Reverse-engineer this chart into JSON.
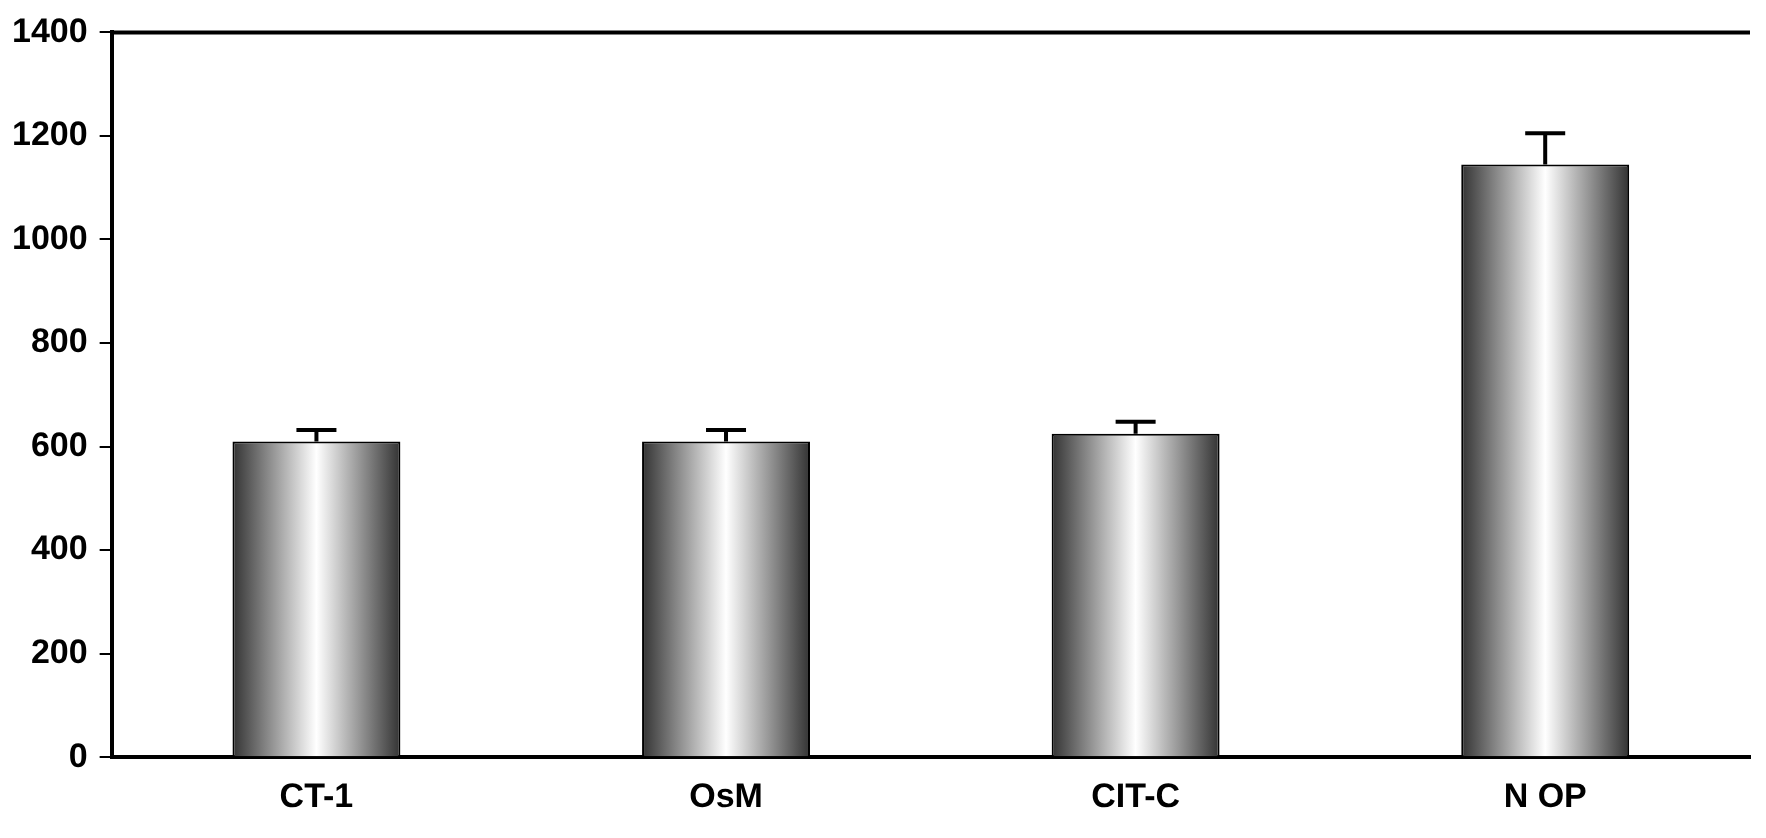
{
  "chart_data": {
    "type": "bar",
    "categories": [
      "CT-1",
      "OsM",
      "CIT-C",
      "N OP"
    ],
    "values": [
      610,
      610,
      625,
      1145
    ],
    "errors": [
      22,
      22,
      23,
      60
    ],
    "color": "#333333",
    "ylim": [
      0,
      1400
    ],
    "yticks": [
      0,
      200,
      400,
      600,
      800,
      1000,
      1200,
      1400
    ],
    "grid": false,
    "legend": false
  }
}
